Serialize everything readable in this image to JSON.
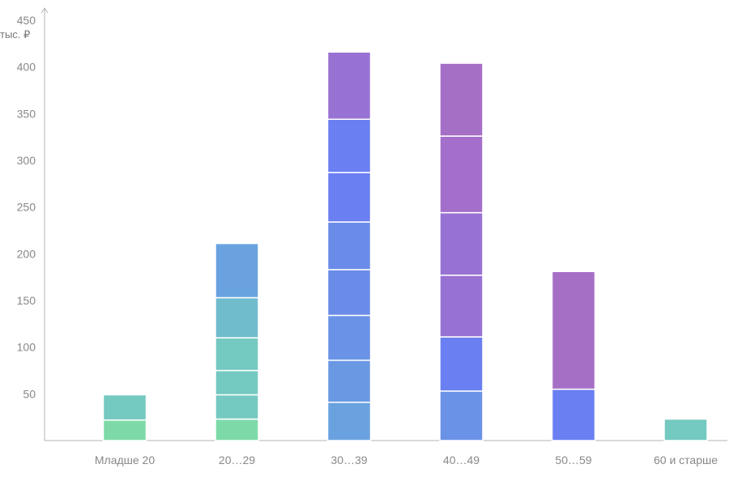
{
  "chart_data": {
    "type": "bar",
    "stacked": true,
    "title": "",
    "xlabel": "",
    "ylabel": "тыс. ₽",
    "ylim": [
      0,
      450
    ],
    "yticks": [
      50,
      100,
      150,
      200,
      250,
      300,
      350,
      400,
      450
    ],
    "grid": false,
    "categories": [
      "Младше 20",
      "20…29",
      "30…39",
      "40…49",
      "50…59",
      "60 и старше"
    ],
    "stacks": [
      {
        "category": "Младше 20",
        "segments": [
          {
            "value": 22,
            "color": "#7ddaa8"
          },
          {
            "value": 27,
            "color": "#74c9c0"
          }
        ]
      },
      {
        "category": "20…29",
        "segments": [
          {
            "value": 23,
            "color": "#7ddaa8"
          },
          {
            "value": 26,
            "color": "#74c9c0"
          },
          {
            "value": 26,
            "color": "#74c9c0"
          },
          {
            "value": 35,
            "color": "#74c9c0"
          },
          {
            "value": 43,
            "color": "#70bccc"
          },
          {
            "value": 58,
            "color": "#6aa2e0"
          }
        ]
      },
      {
        "category": "30…39",
        "segments": [
          {
            "value": 41,
            "color": "#6aa2e0"
          },
          {
            "value": 45,
            "color": "#6a98e3"
          },
          {
            "value": 48,
            "color": "#6a92e6"
          },
          {
            "value": 49,
            "color": "#6a8ce8"
          },
          {
            "value": 51,
            "color": "#6a8ce8"
          },
          {
            "value": 53,
            "color": "#6a7ff2"
          },
          {
            "value": 57,
            "color": "#6a7ff2"
          },
          {
            "value": 72,
            "color": "#9872d3"
          }
        ]
      },
      {
        "category": "40…49",
        "segments": [
          {
            "value": 53,
            "color": "#6a92e6"
          },
          {
            "value": 58,
            "color": "#6a7ff2"
          },
          {
            "value": 66,
            "color": "#9872d3"
          },
          {
            "value": 67,
            "color": "#9872d3"
          },
          {
            "value": 82,
            "color": "#a36fca"
          },
          {
            "value": 78,
            "color": "#a66fc6"
          }
        ]
      },
      {
        "category": "50…59",
        "segments": [
          {
            "value": 55,
            "color": "#6a7ff2"
          },
          {
            "value": 126,
            "color": "#a66fc6"
          }
        ]
      },
      {
        "category": "60 и старше",
        "segments": [
          {
            "value": 23,
            "color": "#74c9c0"
          }
        ]
      }
    ]
  }
}
